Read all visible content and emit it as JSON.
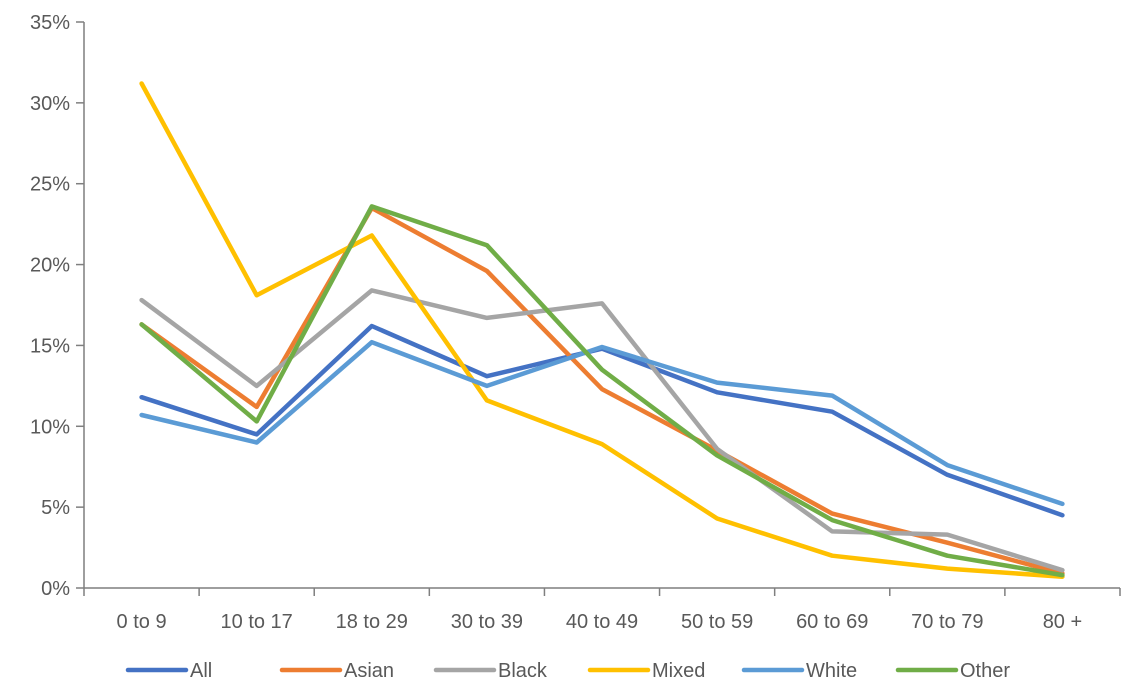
{
  "chart_data": {
    "type": "line",
    "title": "",
    "xlabel": "",
    "ylabel": "",
    "categories": [
      "0 to 9",
      "10 to 17",
      "18 to 29",
      "30 to 39",
      "40 to 49",
      "50 to 59",
      "60 to 69",
      "70 to 79",
      "80 +"
    ],
    "y_ticks": [
      "0%",
      "5%",
      "10%",
      "15%",
      "20%",
      "25%",
      "30%",
      "35%"
    ],
    "ylim": [
      0,
      35
    ],
    "y_unit": "%",
    "grid": false,
    "legend_position": "bottom",
    "series": [
      {
        "name": "All",
        "color": "#4472C4",
        "values": [
          11.8,
          9.5,
          16.2,
          13.1,
          14.8,
          12.1,
          10.9,
          7.0,
          4.5
        ]
      },
      {
        "name": "Asian",
        "color": "#ED7D31",
        "values": [
          16.3,
          11.2,
          23.5,
          19.6,
          12.3,
          8.5,
          4.6,
          2.8,
          0.9
        ]
      },
      {
        "name": "Black",
        "color": "#A5A5A5",
        "values": [
          17.8,
          12.5,
          18.4,
          16.7,
          17.6,
          8.6,
          3.5,
          3.3,
          1.1
        ]
      },
      {
        "name": "Mixed",
        "color": "#FFC000",
        "values": [
          31.2,
          18.1,
          21.8,
          11.6,
          8.9,
          4.3,
          2.0,
          1.2,
          0.7
        ]
      },
      {
        "name": "White",
        "color": "#5B9BD5",
        "values": [
          10.7,
          9.0,
          15.2,
          12.5,
          14.9,
          12.7,
          11.9,
          7.6,
          5.2
        ]
      },
      {
        "name": "Other",
        "color": "#70AD47",
        "values": [
          16.3,
          10.3,
          23.6,
          21.2,
          13.5,
          8.2,
          4.2,
          2.0,
          0.8
        ]
      }
    ]
  }
}
